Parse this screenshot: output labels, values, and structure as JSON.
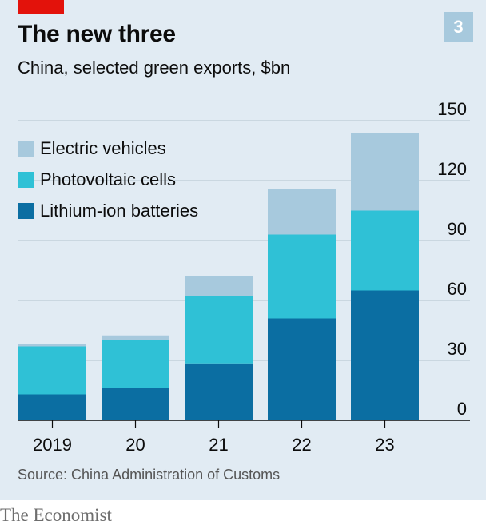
{
  "header": {
    "title": "The new three",
    "subtitle": "China, selected green exports, $bn",
    "badge": "3"
  },
  "colors": {
    "background": "#e1ebf3",
    "brand_red": "#e3120b",
    "electric_vehicles": "#a7c9dd",
    "photovoltaic_cells": "#2fc1d6",
    "lithium_ion_batteries": "#0b6ea2"
  },
  "chart_data": {
    "type": "bar",
    "stacked": true,
    "title": "The new three",
    "subtitle": "China, selected green exports, $bn",
    "categories": [
      "2019",
      "20",
      "21",
      "22",
      "23"
    ],
    "series": [
      {
        "name": "Lithium-ion batteries",
        "color": "#0b6ea2",
        "values": [
          13,
          16,
          28.5,
          51,
          65
        ]
      },
      {
        "name": "Photovoltaic cells",
        "color": "#2fc1d6",
        "values": [
          24,
          24,
          33.5,
          42,
          40
        ]
      },
      {
        "name": "Electric vehicles",
        "color": "#a7c9dd",
        "values": [
          1,
          2.5,
          10,
          23,
          39
        ]
      }
    ],
    "ylim": [
      0,
      150
    ],
    "yticks": [
      0,
      30,
      60,
      90,
      120,
      150
    ],
    "ytick_labels": [
      "0",
      "30",
      "60",
      "90",
      "120",
      "150"
    ],
    "grid": true,
    "y_axis_side": "right",
    "legend_placement": "top-left"
  },
  "legend": {
    "items": [
      {
        "label": "Electric vehicles",
        "color": "#a7c9dd"
      },
      {
        "label": "Photovoltaic cells",
        "color": "#2fc1d6"
      },
      {
        "label": "Lithium-ion batteries",
        "color": "#0b6ea2"
      }
    ]
  },
  "footer": {
    "source": "Source: China Administration of Customs",
    "brand": "The Economist"
  }
}
